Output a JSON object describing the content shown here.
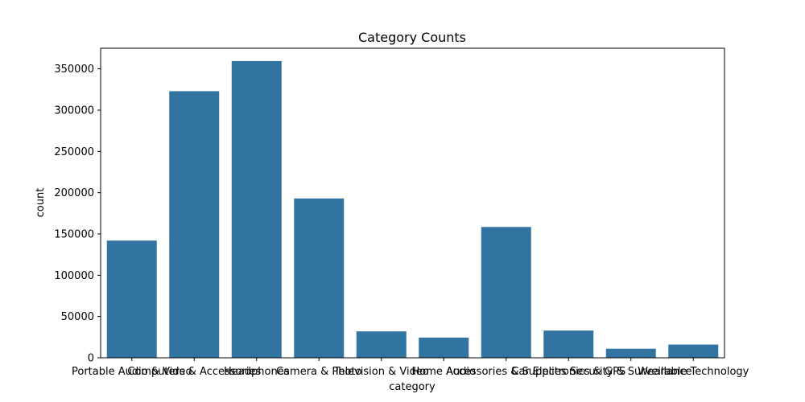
{
  "chart_data": {
    "type": "bar",
    "title": "Category Counts",
    "xlabel": "category",
    "ylabel": "count",
    "categories": [
      "Portable Audio & Video",
      "Computers & Accessories",
      "Headphones",
      "Camera & Photo",
      "Television & Video",
      "Home Audio",
      "Accessories & Supplies",
      "Car Electronics & GPS",
      "Security & Surveillance",
      "Wearable Technology"
    ],
    "values": [
      142000,
      323000,
      359500,
      193000,
      32000,
      24500,
      158500,
      33000,
      11000,
      16000
    ],
    "ylim": [
      0,
      375000
    ],
    "yticks": [
      0,
      50000,
      100000,
      150000,
      200000,
      250000,
      300000,
      350000
    ],
    "ytick_labels": [
      "0",
      "50000",
      "100000",
      "150000",
      "200000",
      "250000",
      "300000",
      "350000"
    ],
    "bar_color": "#3274a1",
    "grid": false,
    "legend": "none"
  }
}
